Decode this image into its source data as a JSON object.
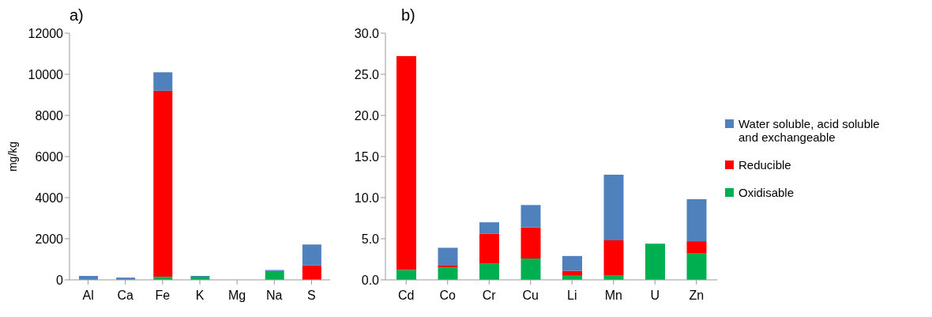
{
  "chart_data": [
    {
      "type": "bar",
      "title": "a)",
      "ylabel": "mg/kg",
      "stacked": true,
      "legend": false,
      "grid": false,
      "categories": [
        "Al",
        "Ca",
        "Fe",
        "K",
        "Mg",
        "Na",
        "S"
      ],
      "ylim": [
        0,
        12000
      ],
      "yticks": [
        0,
        2000,
        4000,
        6000,
        8000,
        10000,
        12000
      ],
      "series": [
        {
          "color": "#00b050",
          "values": [
            0,
            0,
            150,
            150,
            0,
            430,
            0
          ]
        },
        {
          "color": "#ff0000",
          "values": [
            0,
            0,
            9050,
            0,
            0,
            null,
            700
          ]
        },
        {
          "color": "#4f81bd",
          "values": [
            190,
            110,
            900,
            40,
            null,
            50,
            1020
          ]
        }
      ]
    },
    {
      "type": "bar",
      "title": "b)",
      "stacked": true,
      "legend": "right",
      "grid": false,
      "categories": [
        "Cd",
        "Co",
        "Cr",
        "Cu",
        "Li",
        "Mn",
        "U",
        "Zn"
      ],
      "ylim": [
        0,
        30
      ],
      "yticks": [
        {
          "value": 0,
          "label": "0.0"
        },
        {
          "value": 5,
          "label": "5.0"
        },
        {
          "value": 10,
          "label": "10.0"
        },
        {
          "value": 15,
          "label": "15.0"
        },
        {
          "value": 20,
          "label": "20.0"
        },
        {
          "value": 25,
          "label": "25.0"
        },
        {
          "value": 30,
          "label": "30.0"
        }
      ],
      "series": [
        {
          "name": "Oxidisable",
          "color": "#00b050",
          "values": [
            1.2,
            1.5,
            2.0,
            2.6,
            0.5,
            0.5,
            4.4,
            3.2
          ]
        },
        {
          "name": "Reducible",
          "color": "#ff0000",
          "values": [
            26.0,
            0.3,
            3.6,
            3.8,
            0.6,
            4.3,
            0,
            1.5
          ]
        },
        {
          "name": "Water soluble, acid soluble and exchangeable",
          "color": "#4f81bd",
          "values": [
            0,
            2.1,
            1.4,
            2.7,
            1.8,
            8.0,
            0,
            5.1
          ]
        }
      ]
    }
  ]
}
